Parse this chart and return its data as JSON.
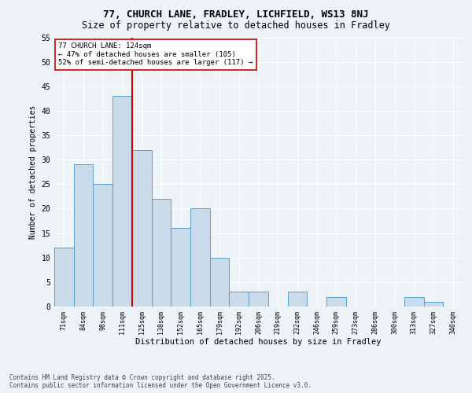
{
  "title1": "77, CHURCH LANE, FRADLEY, LICHFIELD, WS13 8NJ",
  "title2": "Size of property relative to detached houses in Fradley",
  "xlabel": "Distribution of detached houses by size in Fradley",
  "ylabel": "Number of detached properties",
  "categories": [
    "71sqm",
    "84sqm",
    "98sqm",
    "111sqm",
    "125sqm",
    "138sqm",
    "152sqm",
    "165sqm",
    "179sqm",
    "192sqm",
    "206sqm",
    "219sqm",
    "232sqm",
    "246sqm",
    "259sqm",
    "273sqm",
    "286sqm",
    "300sqm",
    "313sqm",
    "327sqm",
    "340sqm"
  ],
  "values": [
    12,
    29,
    25,
    43,
    32,
    22,
    16,
    20,
    10,
    3,
    3,
    0,
    3,
    0,
    2,
    0,
    0,
    0,
    2,
    1,
    0
  ],
  "bar_color": "#c9daea",
  "bar_edge_color": "#5a9fc9",
  "vline_color": "#cc0000",
  "annotation_text": "77 CHURCH LANE: 124sqm\n← 47% of detached houses are smaller (105)\n52% of semi-detached houses are larger (117) →",
  "annotation_box_color": "#ffffff",
  "annotation_box_edge": "#cc0000",
  "ylim": [
    0,
    55
  ],
  "yticks": [
    0,
    5,
    10,
    15,
    20,
    25,
    30,
    35,
    40,
    45,
    50,
    55
  ],
  "footer": "Contains HM Land Registry data © Crown copyright and database right 2025.\nContains public sector information licensed under the Open Government Licence v3.0.",
  "bg_color": "#eef3f8",
  "plot_bg_color": "#eef3f8",
  "title1_fontsize": 9,
  "title2_fontsize": 8.5,
  "xlabel_fontsize": 7.5,
  "ylabel_fontsize": 7,
  "xtick_fontsize": 6,
  "ytick_fontsize": 7,
  "annotation_fontsize": 6.5,
  "footer_fontsize": 5.5
}
